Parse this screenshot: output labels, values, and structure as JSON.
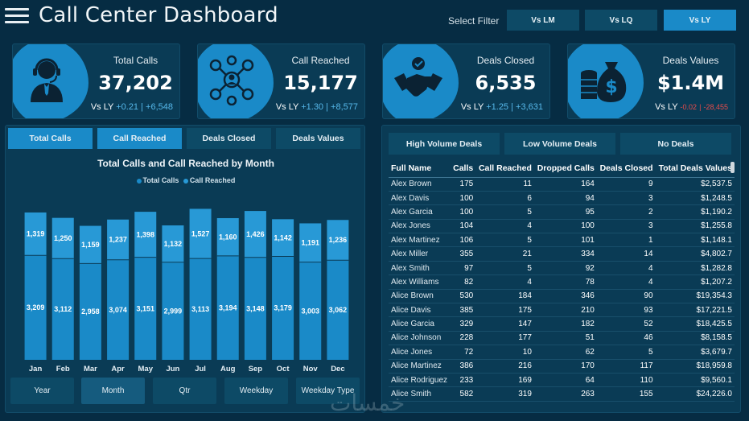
{
  "header": {
    "title": "Call Center Dashboard",
    "select_filter_label": "Select Filter",
    "filters": [
      {
        "label": "Vs LM",
        "active": false
      },
      {
        "label": "Vs LQ",
        "active": false
      },
      {
        "label": "Vs LY",
        "active": true
      }
    ]
  },
  "kpis": [
    {
      "label": "Total Calls",
      "value": "37,202",
      "compare": "Vs LY",
      "delta_pct": "+0.21",
      "sep": "|",
      "delta_abs": "+6,548",
      "trend": "pos",
      "icon": "headset-agent-icon"
    },
    {
      "label": "Call Reached",
      "value": "15,177",
      "compare": "Vs LY",
      "delta_pct": "+1.30",
      "sep": "|",
      "delta_abs": "+8,577",
      "trend": "pos",
      "icon": "network-people-icon"
    },
    {
      "label": "Deals Closed",
      "value": "6,535",
      "compare": "Vs LY",
      "delta_pct": "+1.25",
      "sep": "|",
      "delta_abs": "+3,631",
      "trend": "pos",
      "icon": "handshake-icon"
    },
    {
      "label": "Deals Values",
      "value": "$1.4M",
      "compare": "Vs LY",
      "delta_pct": "-0.02",
      "sep": "|",
      "delta_abs": "-28,455",
      "trend": "neg",
      "icon": "money-bag-icon"
    }
  ],
  "left_tabs": [
    {
      "label": "Total Calls",
      "active": true
    },
    {
      "label": "Call Reached",
      "active": true
    },
    {
      "label": "Deals Closed",
      "active": false
    },
    {
      "label": "Deals Values",
      "active": false
    }
  ],
  "chart_data": {
    "type": "bar",
    "title": "Total Calls and Call Reached by Month",
    "categories": [
      "Jan",
      "Feb",
      "Mar",
      "Apr",
      "May",
      "Jun",
      "Jul",
      "Aug",
      "Sep",
      "Oct",
      "Nov",
      "Dec"
    ],
    "series": [
      {
        "name": "Total Calls",
        "values": [
          3209,
          3112,
          2958,
          3074,
          3151,
          2999,
          3113,
          3194,
          3148,
          3179,
          3003,
          3062
        ],
        "labels": [
          "3,209",
          "3,112",
          "2,958",
          "3,074",
          "3,151",
          "2,999",
          "3,113",
          "3,194",
          "3,148",
          "3,179",
          "3,003",
          "3,062"
        ],
        "color": "#1a8ac8"
      },
      {
        "name": "Call Reached",
        "values": [
          1319,
          1250,
          1159,
          1237,
          1398,
          1132,
          1527,
          1160,
          1426,
          1142,
          1191,
          1236
        ],
        "labels": [
          "1,319",
          "1,250",
          "1,159",
          "1,237",
          "1,398",
          "1,132",
          "1,527",
          "1,160",
          "1,426",
          "1,142",
          "1,191",
          "1,236"
        ],
        "color": "#2899d6"
      }
    ],
    "stacked": true,
    "legend_position": "top-center",
    "grid": false
  },
  "group_buttons": [
    {
      "label": "Year",
      "active": false
    },
    {
      "label": "Month",
      "active": true
    },
    {
      "label": "Qtr",
      "active": false
    },
    {
      "label": "Weekday",
      "active": false
    },
    {
      "label": "Weekday Type",
      "active": false
    }
  ],
  "right_tabs": [
    {
      "label": "High Volume Deals"
    },
    {
      "label": "Low Volume Deals"
    },
    {
      "label": "No Deals"
    }
  ],
  "table": {
    "columns": [
      "Full Name",
      "Calls",
      "Call Reached",
      "Dropped Calls",
      "Deals Closed",
      "Total Deals Values"
    ],
    "rows": [
      [
        "Alex Brown",
        "175",
        "11",
        "164",
        "9",
        "$2,537.5"
      ],
      [
        "Alex Davis",
        "100",
        "6",
        "94",
        "3",
        "$1,248.5"
      ],
      [
        "Alex Garcia",
        "100",
        "5",
        "95",
        "2",
        "$1,190.2"
      ],
      [
        "Alex Jones",
        "104",
        "4",
        "100",
        "3",
        "$1,255.8"
      ],
      [
        "Alex Martinez",
        "106",
        "5",
        "101",
        "1",
        "$1,148.1"
      ],
      [
        "Alex Miller",
        "355",
        "21",
        "334",
        "14",
        "$4,802.7"
      ],
      [
        "Alex Smith",
        "97",
        "5",
        "92",
        "4",
        "$1,282.8"
      ],
      [
        "Alex Williams",
        "82",
        "4",
        "78",
        "4",
        "$1,207.2"
      ],
      [
        "Alice Brown",
        "530",
        "184",
        "346",
        "90",
        "$19,354.3"
      ],
      [
        "Alice Davis",
        "385",
        "175",
        "210",
        "93",
        "$17,221.5"
      ],
      [
        "Alice Garcia",
        "329",
        "147",
        "182",
        "52",
        "$18,425.5"
      ],
      [
        "Alice Johnson",
        "228",
        "177",
        "51",
        "46",
        "$8,158.5"
      ],
      [
        "Alice Jones",
        "72",
        "10",
        "62",
        "5",
        "$3,679.7"
      ],
      [
        "Alice Martinez",
        "386",
        "216",
        "170",
        "117",
        "$18,959.8"
      ],
      [
        "Alice Rodriguez",
        "233",
        "169",
        "64",
        "110",
        "$9,560.1"
      ],
      [
        "Alice Smith",
        "582",
        "319",
        "263",
        "155",
        "$24,226.0"
      ]
    ]
  },
  "watermark": "خمسات"
}
